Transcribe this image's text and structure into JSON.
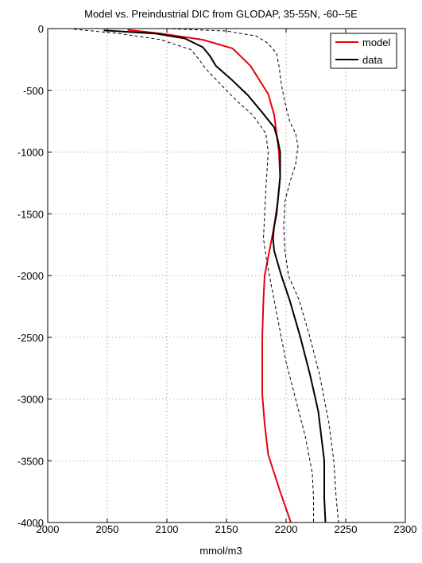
{
  "chart_data": {
    "type": "line",
    "title": "Model vs. Preindustrial DIC from GLODAP,  35-55N, -60--5E",
    "xlabel": "mmol/m3",
    "ylabel": "",
    "xlim": [
      2000,
      2300
    ],
    "ylim": [
      -4000,
      0
    ],
    "xticks": [
      2000,
      2050,
      2100,
      2150,
      2200,
      2250,
      2300
    ],
    "yticks": [
      0,
      -500,
      -1000,
      -1500,
      -2000,
      -2500,
      -3000,
      -3500,
      -4000
    ],
    "grid": true,
    "legend_position": "top-right",
    "legend": [
      "model",
      "data"
    ],
    "series": [
      {
        "name": "model",
        "color": "#e8000b",
        "style": "solid",
        "points": [
          [
            2067,
            -10
          ],
          [
            2095,
            -40
          ],
          [
            2130,
            -90
          ],
          [
            2155,
            -160
          ],
          [
            2170,
            -300
          ],
          [
            2185,
            -530
          ],
          [
            2190,
            -700
          ],
          [
            2192,
            -850
          ],
          [
            2194,
            -1000
          ],
          [
            2195,
            -1200
          ],
          [
            2193,
            -1400
          ],
          [
            2190,
            -1600
          ],
          [
            2186,
            -1800
          ],
          [
            2182,
            -2000
          ],
          [
            2181,
            -2200
          ],
          [
            2180,
            -2500
          ],
          [
            2180,
            -2960
          ],
          [
            2182,
            -3200
          ],
          [
            2185,
            -3450
          ],
          [
            2195,
            -3750
          ],
          [
            2204,
            -4000
          ]
        ]
      },
      {
        "name": "data",
        "color": "#000000",
        "style": "solid",
        "points": [
          [
            2047,
            -15
          ],
          [
            2090,
            -40
          ],
          [
            2115,
            -80
          ],
          [
            2130,
            -150
          ],
          [
            2136,
            -220
          ],
          [
            2141,
            -300
          ],
          [
            2155,
            -420
          ],
          [
            2168,
            -540
          ],
          [
            2180,
            -680
          ],
          [
            2190,
            -800
          ],
          [
            2193,
            -900
          ],
          [
            2195,
            -1000
          ],
          [
            2195,
            -1200
          ],
          [
            2193,
            -1400
          ],
          [
            2192,
            -1500
          ],
          [
            2190,
            -1600
          ],
          [
            2189,
            -1700
          ],
          [
            2190,
            -1800
          ],
          [
            2196,
            -2000
          ],
          [
            2203,
            -2200
          ],
          [
            2212,
            -2500
          ],
          [
            2220,
            -2800
          ],
          [
            2227,
            -3100
          ],
          [
            2232,
            -3500
          ],
          [
            2232,
            -3800
          ],
          [
            2233,
            -4000
          ]
        ]
      },
      {
        "name": "",
        "color": "#000000",
        "style": "dashed",
        "points": [
          [
            2022,
            -5
          ],
          [
            2060,
            -40
          ],
          [
            2095,
            -90
          ],
          [
            2120,
            -170
          ],
          [
            2127,
            -250
          ],
          [
            2133,
            -330
          ],
          [
            2143,
            -430
          ],
          [
            2158,
            -580
          ],
          [
            2172,
            -700
          ],
          [
            2183,
            -850
          ],
          [
            2185,
            -1000
          ],
          [
            2183,
            -1300
          ],
          [
            2182,
            -1500
          ],
          [
            2181,
            -1700
          ],
          [
            2184,
            -1900
          ],
          [
            2188,
            -2100
          ],
          [
            2194,
            -2400
          ],
          [
            2200,
            -2700
          ],
          [
            2208,
            -3000
          ],
          [
            2216,
            -3300
          ],
          [
            2222,
            -3600
          ],
          [
            2223,
            -3800
          ],
          [
            2223,
            -4000
          ]
        ]
      },
      {
        "name": "",
        "color": "#000000",
        "style": "dashed",
        "points": [
          [
            2100,
            0
          ],
          [
            2150,
            -20
          ],
          [
            2175,
            -60
          ],
          [
            2185,
            -120
          ],
          [
            2192,
            -200
          ],
          [
            2194,
            -300
          ],
          [
            2196,
            -450
          ],
          [
            2199,
            -600
          ],
          [
            2203,
            -750
          ],
          [
            2208,
            -850
          ],
          [
            2210,
            -950
          ],
          [
            2208,
            -1100
          ],
          [
            2203,
            -1250
          ],
          [
            2199,
            -1400
          ],
          [
            2198,
            -1600
          ],
          [
            2199,
            -1800
          ],
          [
            2202,
            -2000
          ],
          [
            2211,
            -2200
          ],
          [
            2220,
            -2500
          ],
          [
            2228,
            -2800
          ],
          [
            2236,
            -3200
          ],
          [
            2240,
            -3500
          ],
          [
            2242,
            -3800
          ],
          [
            2244,
            -4000
          ]
        ]
      }
    ]
  }
}
